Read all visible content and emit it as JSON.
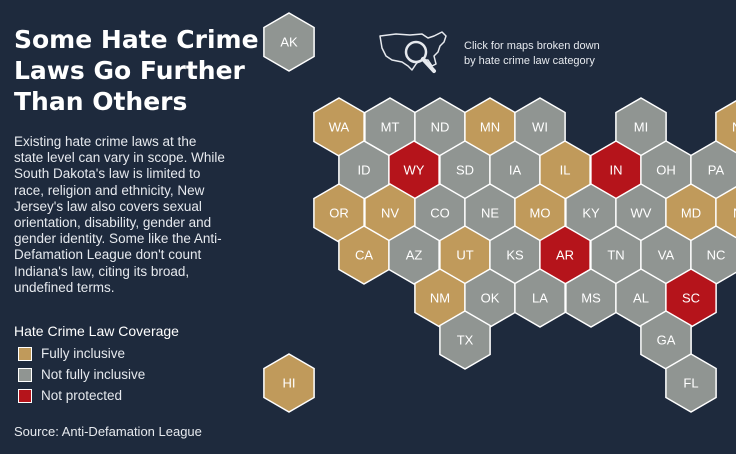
{
  "title": {
    "lines": [
      "Some Hate Crime",
      "Laws Go Further",
      "Than Others"
    ]
  },
  "description": {
    "lines": [
      "Existing hate crime laws at the",
      "state level can vary in scope. While",
      "South Dakota's law is limited to",
      "race, religion and ethnicity, New",
      "Jersey's law also covers sexual",
      "orientation, disability, gender and",
      "gender identity. Some like the Anti-",
      "Defamation League don't count",
      "Indiana's law, citing its broad,",
      "undefined terms."
    ]
  },
  "map_link": {
    "line1": "Click for maps broken down",
    "line2": "by hate crime law category",
    "icon": "us-map-magnifier-icon"
  },
  "legend": {
    "title": "Hate Crime Law Coverage",
    "items": [
      {
        "label": "Fully inclusive",
        "color": "#c09a5b"
      },
      {
        "label": "Not fully inclusive",
        "color": "#909592"
      },
      {
        "label": "Not protected",
        "color": "#b5141b"
      }
    ]
  },
  "source": "Source: Anti-Defamation League",
  "colors": {
    "fully": "#c09a5b",
    "partial": "#909592",
    "none": "#b5141b",
    "background": "#1e2a3d",
    "tile_stroke": "#ffffff"
  },
  "states": [
    {
      "abbr": "AK",
      "category": "partial"
    },
    {
      "abbr": "HI",
      "category": "fully"
    },
    {
      "abbr": "WA",
      "category": "fully"
    },
    {
      "abbr": "MT",
      "category": "partial"
    },
    {
      "abbr": "ND",
      "category": "partial"
    },
    {
      "abbr": "MN",
      "category": "fully"
    },
    {
      "abbr": "WI",
      "category": "partial"
    },
    {
      "abbr": "MI",
      "category": "partial"
    },
    {
      "abbr": "NY",
      "category": "fully"
    },
    {
      "abbr": "ID",
      "category": "partial"
    },
    {
      "abbr": "WY",
      "category": "none"
    },
    {
      "abbr": "SD",
      "category": "partial"
    },
    {
      "abbr": "IA",
      "category": "partial"
    },
    {
      "abbr": "IL",
      "category": "fully"
    },
    {
      "abbr": "IN",
      "category": "none"
    },
    {
      "abbr": "OH",
      "category": "partial"
    },
    {
      "abbr": "PA",
      "category": "partial"
    },
    {
      "abbr": "OR",
      "category": "fully"
    },
    {
      "abbr": "NV",
      "category": "fully"
    },
    {
      "abbr": "CO",
      "category": "partial"
    },
    {
      "abbr": "NE",
      "category": "partial"
    },
    {
      "abbr": "MO",
      "category": "fully"
    },
    {
      "abbr": "KY",
      "category": "partial"
    },
    {
      "abbr": "WV",
      "category": "partial"
    },
    {
      "abbr": "MD",
      "category": "fully"
    },
    {
      "abbr": "NJ",
      "category": "fully"
    },
    {
      "abbr": "CA",
      "category": "fully"
    },
    {
      "abbr": "AZ",
      "category": "partial"
    },
    {
      "abbr": "UT",
      "category": "fully"
    },
    {
      "abbr": "KS",
      "category": "partial"
    },
    {
      "abbr": "AR",
      "category": "none"
    },
    {
      "abbr": "TN",
      "category": "partial"
    },
    {
      "abbr": "VA",
      "category": "partial"
    },
    {
      "abbr": "NC",
      "category": "partial"
    },
    {
      "abbr": "NM",
      "category": "fully"
    },
    {
      "abbr": "OK",
      "category": "partial"
    },
    {
      "abbr": "LA",
      "category": "partial"
    },
    {
      "abbr": "MS",
      "category": "partial"
    },
    {
      "abbr": "AL",
      "category": "partial"
    },
    {
      "abbr": "SC",
      "category": "none"
    },
    {
      "abbr": "TX",
      "category": "partial"
    },
    {
      "abbr": "GA",
      "category": "partial"
    },
    {
      "abbr": "FL",
      "category": "partial"
    }
  ]
}
